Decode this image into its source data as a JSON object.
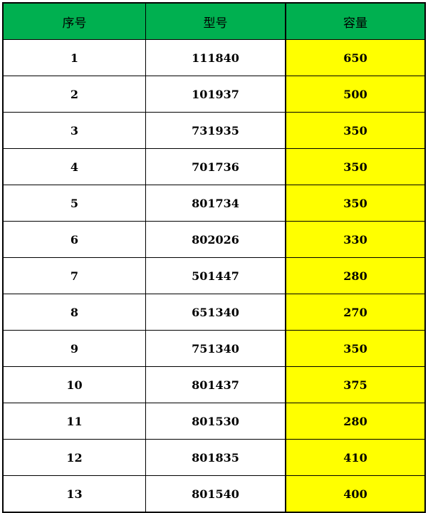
{
  "colors": {
    "header_bg": "#00b050",
    "capacity_bg": "#ffff00"
  },
  "table": {
    "headers": [
      "序号",
      "型号",
      "容量"
    ],
    "rows": [
      [
        "1",
        "111840",
        "650"
      ],
      [
        "2",
        "101937",
        "500"
      ],
      [
        "3",
        "731935",
        "350"
      ],
      [
        "4",
        "701736",
        "350"
      ],
      [
        "5",
        "801734",
        "350"
      ],
      [
        "6",
        "802026",
        "330"
      ],
      [
        "7",
        "501447",
        "280"
      ],
      [
        "8",
        "651340",
        "270"
      ],
      [
        "9",
        "751340",
        "350"
      ],
      [
        "10",
        "801437",
        "375"
      ],
      [
        "11",
        "801530",
        "280"
      ],
      [
        "12",
        "801835",
        "410"
      ],
      [
        "13",
        "801540",
        "400"
      ]
    ]
  }
}
